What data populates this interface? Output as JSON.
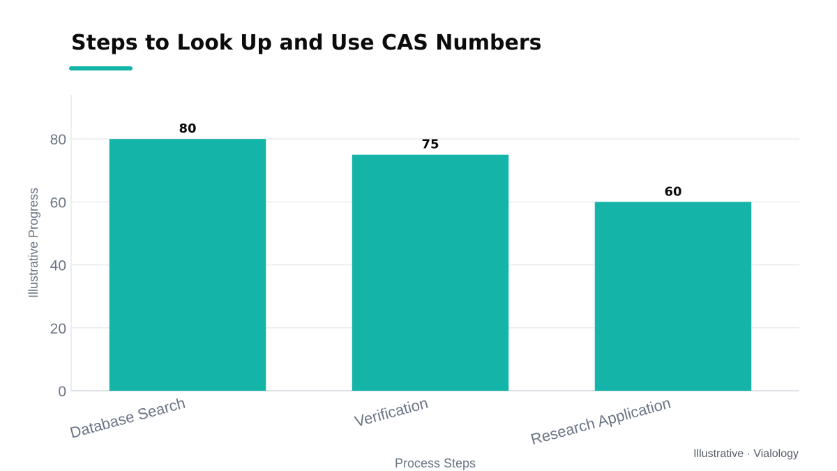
{
  "chart_data": {
    "type": "bar",
    "title": "Steps to Look Up and Use CAS Numbers",
    "xlabel": "Process Steps",
    "ylabel": "Illustrative Progress",
    "categories": [
      "Database Search",
      "Verification",
      "Research Application"
    ],
    "values": [
      80,
      75,
      60
    ],
    "ylim": [
      0,
      94
    ],
    "yticks": [
      0,
      20,
      40,
      60,
      80
    ],
    "grid": true,
    "legend": "none",
    "bar_color": "#14b4a8",
    "accent_color": "#14b4a8",
    "credit": "Illustrative · Vialology"
  }
}
